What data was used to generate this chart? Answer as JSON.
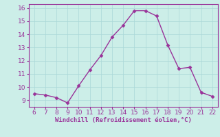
{
  "x": [
    6,
    7,
    8,
    9,
    10,
    11,
    12,
    13,
    14,
    15,
    16,
    17,
    18,
    19,
    20,
    21,
    22
  ],
  "y": [
    9.5,
    9.4,
    9.2,
    8.8,
    10.1,
    11.3,
    12.4,
    13.8,
    14.7,
    15.8,
    15.8,
    15.4,
    13.2,
    11.4,
    11.5,
    9.6,
    9.3
  ],
  "line_color": "#993399",
  "marker": "D",
  "marker_size": 2.5,
  "linewidth": 1.0,
  "xlabel": "Windchill (Refroidissement éolien,°C)",
  "xlabel_fontsize": 6.5,
  "xlim": [
    5.5,
    22.5
  ],
  "ylim": [
    8.5,
    16.3
  ],
  "xticks": [
    6,
    7,
    8,
    9,
    10,
    11,
    12,
    13,
    14,
    15,
    16,
    17,
    18,
    19,
    20,
    21,
    22
  ],
  "yticks": [
    9,
    10,
    11,
    12,
    13,
    14,
    15,
    16
  ],
  "tick_fontsize": 6.5,
  "grid_color": "#aad8d8",
  "bg_color": "#cceee8",
  "fig_bg_color": "#cceee8"
}
